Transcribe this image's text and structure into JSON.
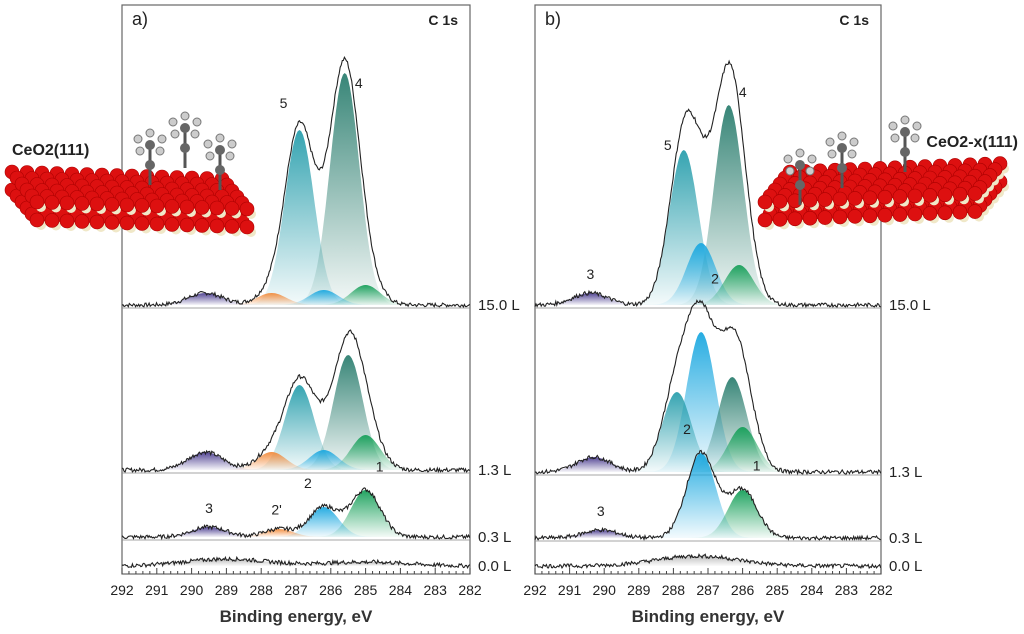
{
  "chart_data": [
    {
      "type": "area",
      "panel_label": "a)",
      "title": "C 1s",
      "surface_label": "CeO2(111)",
      "xlabel": "Binding energy, eV",
      "ylabel": "",
      "xlim": [
        292,
        282
      ],
      "x_reversed": true,
      "xticks": [
        "292",
        "291",
        "290",
        "289",
        "288",
        "287",
        "286",
        "285",
        "284",
        "283",
        "282"
      ],
      "grid": false,
      "colors": {
        "1": "#17a05a",
        "2": "#1ba8e0",
        "2'": "#f28a3a",
        "3": "#4a3c8f",
        "4": "#2d7f70",
        "5": "#2a9fad",
        "envelope": "#222222"
      },
      "spectra": [
        {
          "exposure": "15.0 L",
          "components": [
            {
              "peak": "5",
              "center": 286.9,
              "height": 175
            },
            {
              "peak": "4",
              "center": 285.6,
              "height": 232
            },
            {
              "peak": "1",
              "center": 285.0,
              "height": 20
            },
            {
              "peak": "2",
              "center": 286.2,
              "height": 15
            },
            {
              "peak": "2'",
              "center": 287.7,
              "height": 12
            },
            {
              "peak": "3",
              "center": 289.6,
              "height": 12
            }
          ],
          "labels": [
            "5",
            "4"
          ]
        },
        {
          "exposure": "1.3 L",
          "components": [
            {
              "peak": "5",
              "center": 286.9,
              "height": 85
            },
            {
              "peak": "4",
              "center": 285.5,
              "height": 115
            },
            {
              "peak": "1",
              "center": 285.0,
              "height": 35
            },
            {
              "peak": "2",
              "center": 286.2,
              "height": 20
            },
            {
              "peak": "2'",
              "center": 287.7,
              "height": 18
            },
            {
              "peak": "3",
              "center": 289.6,
              "height": 18
            }
          ],
          "labels": []
        },
        {
          "exposure": "0.3 L",
          "components": [
            {
              "peak": "1",
              "center": 285.0,
              "height": 47
            },
            {
              "peak": "2",
              "center": 286.2,
              "height": 30
            },
            {
              "peak": "2'",
              "center": 287.5,
              "height": 8
            },
            {
              "peak": "3",
              "center": 289.5,
              "height": 10
            }
          ],
          "labels": [
            "3",
            "2'",
            "2",
            "1"
          ]
        },
        {
          "exposure": "0.0 L",
          "components": [
            {
              "peak": "bg",
              "center": 289.0,
              "height": 7
            },
            {
              "peak": "bg",
              "center": 285.0,
              "height": 4
            }
          ],
          "labels": []
        }
      ]
    },
    {
      "type": "area",
      "panel_label": "b)",
      "title": "C 1s",
      "surface_label": "CeO2-x(111)",
      "xlabel": "Binding energy, eV",
      "ylabel": "",
      "xlim": [
        292,
        282
      ],
      "x_reversed": true,
      "xticks": [
        "292",
        "291",
        "290",
        "289",
        "288",
        "287",
        "286",
        "285",
        "284",
        "283",
        "282"
      ],
      "grid": false,
      "spectra": [
        {
          "exposure": "15.0 L",
          "components": [
            {
              "peak": "5",
              "center": 287.7,
              "height": 155
            },
            {
              "peak": "4",
              "center": 286.4,
              "height": 200
            },
            {
              "peak": "2",
              "center": 287.2,
              "height": 62
            },
            {
              "peak": "1",
              "center": 286.1,
              "height": 40
            },
            {
              "peak": "3",
              "center": 290.4,
              "height": 12
            }
          ],
          "labels": [
            "5",
            "4",
            "3"
          ]
        },
        {
          "exposure": "1.3 L",
          "components": [
            {
              "peak": "2",
              "center": 287.2,
              "height": 140
            },
            {
              "peak": "5",
              "center": 287.9,
              "height": 80
            },
            {
              "peak": "4",
              "center": 286.3,
              "height": 95
            },
            {
              "peak": "1",
              "center": 286.0,
              "height": 45
            },
            {
              "peak": "3",
              "center": 290.3,
              "height": 15
            }
          ],
          "labels": [
            "2"
          ]
        },
        {
          "exposure": "0.3 L",
          "components": [
            {
              "peak": "2",
              "center": 287.2,
              "height": 85
            },
            {
              "peak": "1",
              "center": 286.0,
              "height": 48
            },
            {
              "peak": "3",
              "center": 290.1,
              "height": 8
            }
          ],
          "labels": [
            "3",
            "2",
            "1"
          ]
        },
        {
          "exposure": "0.0 L",
          "components": [
            {
              "peak": "bg",
              "center": 287.3,
              "height": 10
            }
          ],
          "labels": []
        }
      ]
    }
  ]
}
